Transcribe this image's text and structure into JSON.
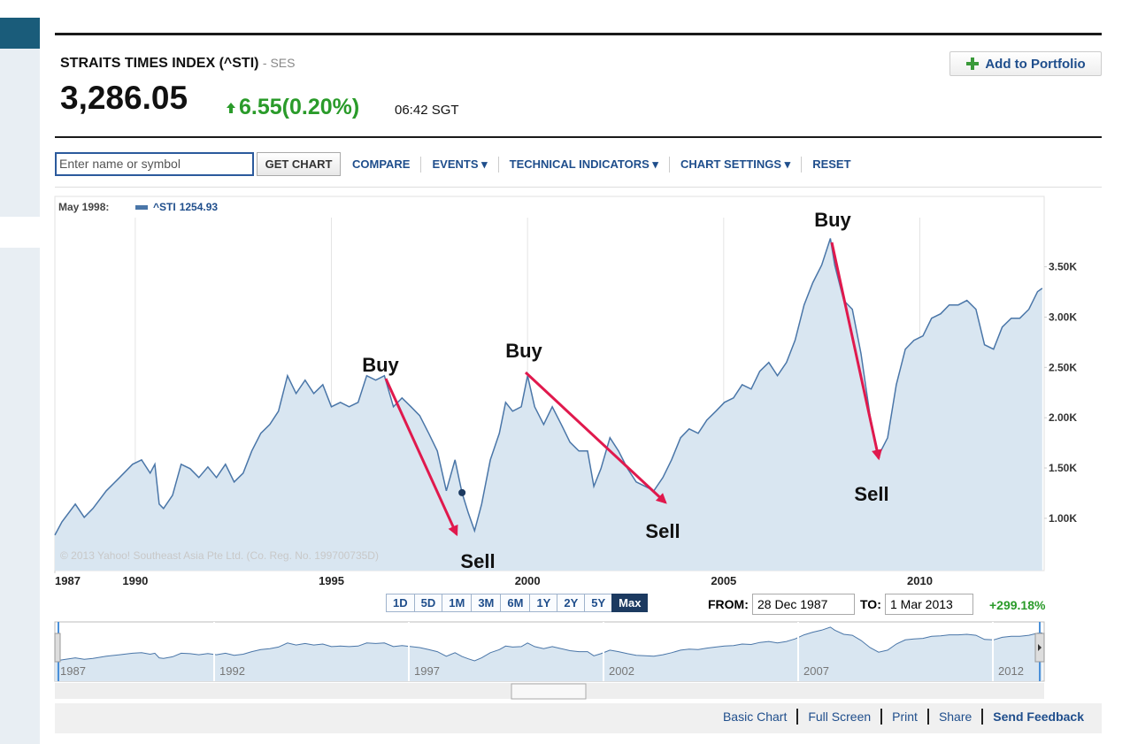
{
  "header": {
    "title": "STRAITS TIMES INDEX (^STI)",
    "exchange": "- SES",
    "price": "3,286.05",
    "change": "6.55(0.20%)",
    "time": "06:42 SGT",
    "add_button": "Add to Portfolio"
  },
  "toolbar": {
    "placeholder": "Enter name or symbol",
    "get_chart": "GET CHART",
    "links": [
      "COMPARE",
      "EVENTS ▾",
      "TECHNICAL INDICATORS ▾",
      "CHART SETTINGS ▾",
      "RESET"
    ]
  },
  "chart_data": {
    "type": "area",
    "legend_date": "May 1998:",
    "copyright": "© 2013 Yahoo! Southeast Asia Pte Ltd. (Co. Reg. No. 199700735D)",
    "series": [
      {
        "name": "^STI",
        "color": "#4a76a8",
        "fill": "#d9e6f1",
        "x": [
          1987.95,
          1988.13,
          1988.47,
          1988.7,
          1988.92,
          1989.26,
          1989.6,
          1989.93,
          1990.16,
          1990.38,
          1990.5,
          1990.61,
          1990.72,
          1990.95,
          1991.17,
          1991.4,
          1991.62,
          1991.85,
          1992.07,
          1992.3,
          1992.52,
          1992.75,
          1992.97,
          1993.2,
          1993.43,
          1993.65,
          1993.88,
          1994.1,
          1994.33,
          1994.55,
          1994.78,
          1995.0,
          1995.23,
          1995.45,
          1995.68,
          1995.9,
          1996.13,
          1996.35,
          1996.58,
          1996.8,
          1997.03,
          1997.25,
          1997.48,
          1997.7,
          1997.93,
          1998.15,
          1998.33,
          1998.49,
          1998.65,
          1998.83,
          1999.05,
          1999.28,
          1999.44,
          1999.62,
          1999.84,
          2000.0,
          2000.18,
          2000.41,
          2000.63,
          2000.86,
          2001.08,
          2001.31,
          2001.53,
          2001.69,
          2001.87,
          2002.1,
          2002.32,
          2002.55,
          2002.77,
          2003.0,
          2003.22,
          2003.45,
          2003.67,
          2003.9,
          2004.12,
          2004.35,
          2004.57,
          2004.8,
          2005.02,
          2005.25,
          2005.47,
          2005.7,
          2005.92,
          2006.15,
          2006.37,
          2006.6,
          2006.82,
          2007.05,
          2007.27,
          2007.5,
          2007.72,
          2007.83,
          2008.06,
          2008.28,
          2008.5,
          2008.73,
          2008.95,
          2009.18,
          2009.4,
          2009.63,
          2009.85,
          2010.08,
          2010.3,
          2010.53,
          2010.75,
          2010.98,
          2011.2,
          2011.43,
          2011.65,
          2011.88,
          2012.1,
          2012.33,
          2012.55,
          2012.78,
          2013.0,
          2013.12
        ],
        "values": [
          833,
          965,
          1141,
          1009,
          1097,
          1273,
          1405,
          1537,
          1581,
          1449,
          1537,
          1141,
          1097,
          1229,
          1537,
          1493,
          1405,
          1511,
          1405,
          1537,
          1361,
          1449,
          1669,
          1845,
          1933,
          2065,
          2417,
          2241,
          2373,
          2241,
          2329,
          2109,
          2153,
          2109,
          2153,
          2417,
          2373,
          2417,
          2109,
          2197,
          2109,
          2021,
          1845,
          1669,
          1273,
          1581,
          1254.93,
          1053,
          877,
          1141,
          1581,
          1845,
          2153,
          2065,
          2109,
          2417,
          2109,
          1933,
          2109,
          1933,
          1757,
          1669,
          1669,
          1317,
          1493,
          1801,
          1669,
          1493,
          1361,
          1317,
          1273,
          1405,
          1581,
          1801,
          1889,
          1845,
          1977,
          2065,
          2153,
          2197,
          2329,
          2285,
          2461,
          2549,
          2417,
          2549,
          2769,
          3121,
          3342,
          3518,
          3782,
          3518,
          3166,
          3078,
          2637,
          2021,
          1625,
          1801,
          2329,
          2681,
          2769,
          2813,
          2989,
          3033,
          3121,
          3121,
          3166,
          3078,
          2725,
          2681,
          2901,
          2989,
          2989,
          3078,
          3253,
          3286.05
        ]
      }
    ],
    "xlim": [
      1987.95,
      2013.17
    ],
    "xticks": [
      {
        "value": 1987.95,
        "label": "1987"
      },
      1990,
      1995,
      2000,
      2005,
      2010
    ],
    "ylim": [
      480,
      4200
    ],
    "yticks": [
      {
        "value": 1000,
        "label": "1.00K"
      },
      {
        "value": 1500,
        "label": "1.50K"
      },
      {
        "value": 2000,
        "label": "2.00K"
      },
      {
        "value": 2500,
        "label": "2.50K"
      },
      {
        "value": 3000,
        "label": "3.00K"
      },
      {
        "value": 3500,
        "label": "3.50K"
      }
    ],
    "grid": true,
    "annotations": [
      "Buy",
      "Sell",
      "Buy",
      "Sell",
      "Buy",
      "Sell"
    ]
  },
  "range_buttons": [
    "1D",
    "5D",
    "1M",
    "3M",
    "6M",
    "1Y",
    "2Y",
    "5Y",
    "Max"
  ],
  "date_range": {
    "from_label": "FROM:",
    "from": "28 Dec 1987",
    "to_label": "TO:",
    "to": "1 Mar 2013",
    "change": "+299.18%"
  },
  "navigator_labels": [
    "1987",
    "1992",
    "1997",
    "2002",
    "2007",
    "2012"
  ],
  "footer_links": [
    "Basic Chart",
    "Full Screen",
    "Print",
    "Share",
    "Send Feedback"
  ]
}
